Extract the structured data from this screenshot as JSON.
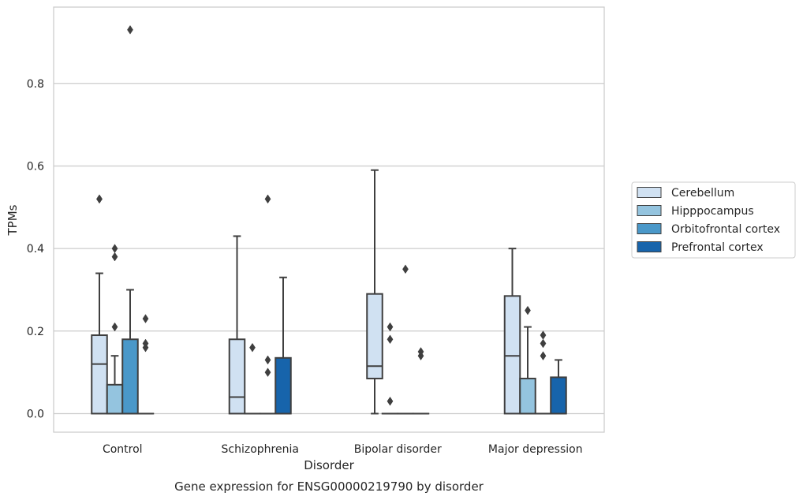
{
  "caption": "Gene expression for ENSG00000219790 by disorder",
  "chart_data": {
    "type": "box",
    "xlabel": "Disorder",
    "ylabel": "TPMs",
    "ylim": [
      -0.045,
      0.985
    ],
    "yticks": [
      0.0,
      0.2,
      0.4,
      0.6,
      0.8
    ],
    "ytick_labels": [
      "0.0",
      "0.2",
      "0.4",
      "0.6",
      "0.8"
    ],
    "grid": "horizontal",
    "legend_position": "right",
    "categories": [
      "Control",
      "Schizophrenia",
      "Bipolar disorder",
      "Major depression"
    ],
    "series": [
      {
        "name": "Cerebellum",
        "color": "#d0e1f2",
        "boxes": [
          {
            "whisker_low": 0,
            "q1": 0,
            "median": 0.12,
            "q3": 0.19,
            "whisker_high": 0.34,
            "outliers": [
              0.52,
              0.52
            ]
          },
          {
            "whisker_low": 0,
            "q1": 0,
            "median": 0.04,
            "q3": 0.18,
            "whisker_high": 0.43,
            "outliers": []
          },
          {
            "whisker_low": 0,
            "q1": 0.085,
            "median": 0.115,
            "q3": 0.29,
            "whisker_high": 0.59,
            "outliers": []
          },
          {
            "whisker_low": 0,
            "q1": 0,
            "median": 0.14,
            "q3": 0.285,
            "whisker_high": 0.4,
            "outliers": []
          }
        ]
      },
      {
        "name": "Hipppocampus",
        "color": "#94c4df",
        "boxes": [
          {
            "whisker_low": 0,
            "q1": 0,
            "median": 0,
            "q3": 0.07,
            "whisker_high": 0.14,
            "outliers": [
              0.21,
              0.38,
              0.4
            ]
          },
          {
            "whisker_low": 0,
            "q1": 0,
            "median": 0,
            "q3": 0,
            "whisker_high": 0,
            "outliers": [
              0.16
            ]
          },
          {
            "whisker_low": 0,
            "q1": 0,
            "median": 0,
            "q3": 0,
            "whisker_high": 0,
            "outliers": [
              0.03,
              0.18,
              0.21
            ]
          },
          {
            "whisker_low": 0,
            "q1": 0,
            "median": 0,
            "q3": 0.085,
            "whisker_high": 0.21,
            "outliers": [
              0.25
            ]
          }
        ]
      },
      {
        "name": "Orbitofrontal cortex",
        "color": "#4a98c9",
        "boxes": [
          {
            "whisker_low": 0,
            "q1": 0,
            "median": 0,
            "q3": 0.18,
            "whisker_high": 0.3,
            "outliers": [
              0.93
            ]
          },
          {
            "whisker_low": 0,
            "q1": 0,
            "median": 0,
            "q3": 0,
            "whisker_high": 0,
            "outliers": [
              0.1,
              0.13,
              0.52
            ]
          },
          {
            "whisker_low": 0,
            "q1": 0,
            "median": 0,
            "q3": 0,
            "whisker_high": 0,
            "outliers": [
              0.35
            ]
          },
          {
            "whisker_low": 0,
            "q1": 0,
            "median": 0,
            "q3": 0,
            "whisker_high": 0,
            "outliers": [
              0.14,
              0.17,
              0.19
            ]
          }
        ]
      },
      {
        "name": "Prefrontal cortex",
        "color": "#1764ab",
        "boxes": [
          {
            "whisker_low": 0,
            "q1": 0,
            "median": 0,
            "q3": 0,
            "whisker_high": 0,
            "outliers": [
              0.16,
              0.17,
              0.23
            ]
          },
          {
            "whisker_low": 0,
            "q1": 0,
            "median": 0,
            "q3": 0.135,
            "whisker_high": 0.33,
            "outliers": []
          },
          {
            "whisker_low": 0,
            "q1": 0,
            "median": 0,
            "q3": 0,
            "whisker_high": 0,
            "outliers": [
              0.14,
              0.15
            ]
          },
          {
            "whisker_low": 0,
            "q1": 0,
            "median": 0,
            "q3": 0.088,
            "whisker_high": 0.13,
            "outliers": []
          }
        ]
      }
    ]
  }
}
